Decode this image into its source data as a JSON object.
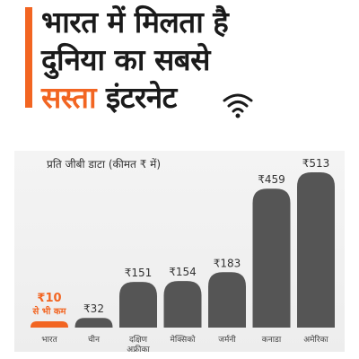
{
  "headline": {
    "line1": "भारत में मिलता है",
    "line2": "दुनिया का सबसे",
    "line3_highlight": "सस्ता",
    "line3_rest": "इंटरनेट",
    "accent_color": "#f26522",
    "icon": "wifi-icon"
  },
  "chart_data": {
    "type": "bar",
    "title": "प्रति जीबी डाटा (कीमत ₹ में)",
    "categories": [
      "भारत",
      "चीन",
      "दक्षिण अफ्रीका",
      "मेक्सिको",
      "जर्मनी",
      "कनाडा",
      "अमेरिका"
    ],
    "values": [
      10,
      32,
      151,
      154,
      183,
      459,
      513
    ],
    "value_labels": [
      "₹10",
      "₹32",
      "₹151",
      "₹154",
      "₹183",
      "₹459",
      "₹513"
    ],
    "highlight": {
      "category": "भारत",
      "label": "₹10",
      "sublabel": "से भी कम",
      "color": "#f26522"
    },
    "bar_color": "#555555",
    "ylim": [
      0,
      513
    ],
    "xlabel": "",
    "ylabel": ""
  }
}
